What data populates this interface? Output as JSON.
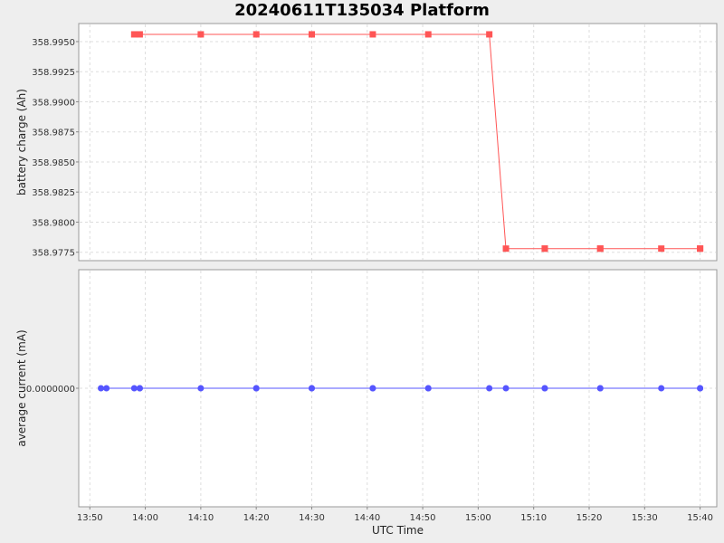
{
  "chart_data": {
    "title": "20240611T135034 Platform",
    "xlabel": "UTC Time",
    "x_ticks": [
      "13:50",
      "14:00",
      "14:10",
      "14:20",
      "14:30",
      "14:40",
      "14:50",
      "15:00",
      "15:10",
      "15:20",
      "15:30",
      "15:40"
    ],
    "x_range": [
      "13:48",
      "15:43"
    ],
    "grid": true,
    "panels": [
      {
        "type": "line",
        "ylabel": "battery charge (Ah)",
        "ylim": [
          358.9768,
          358.9965
        ],
        "y_ticks": [
          "358.9775",
          "358.9800",
          "358.9825",
          "358.9850",
          "358.9875",
          "358.9900",
          "358.9925",
          "358.9950"
        ],
        "color": "#ff5555",
        "marker": "square",
        "series": [
          {
            "x": [
              "13:58",
              "13:59",
              "14:10",
              "14:20",
              "14:30",
              "14:30",
              "14:41",
              "14:51",
              "15:02",
              "15:05",
              "15:12",
              "15:12",
              "15:22",
              "15:22",
              "15:33",
              "15:40",
              "15:40"
            ],
            "y": [
              358.9956,
              358.9956,
              358.9956,
              358.9956,
              358.9956,
              358.9956,
              358.9956,
              358.9956,
              358.9956,
              358.9778,
              358.9778,
              358.9778,
              358.9778,
              358.9778,
              358.9778,
              358.9778,
              358.9778
            ]
          }
        ]
      },
      {
        "type": "line",
        "ylabel": "average current (mA)",
        "y_ticks": [
          "0.0000000"
        ],
        "color": "#5555ff",
        "marker": "circle",
        "series": [
          {
            "x": [
              "13:52",
              "13:53",
              "13:58",
              "13:59",
              "13:59",
              "14:10",
              "14:20",
              "14:20",
              "14:30",
              "14:30",
              "14:41",
              "14:41",
              "14:51",
              "14:51",
              "15:02",
              "15:05",
              "15:12",
              "15:12",
              "15:22",
              "15:22",
              "15:33",
              "15:40",
              "15:40"
            ],
            "y": [
              0,
              0,
              0,
              0,
              0,
              0,
              0,
              0,
              0,
              0,
              0,
              0,
              0,
              0,
              0,
              0,
              0,
              0,
              0,
              0,
              0,
              0,
              0
            ]
          }
        ]
      }
    ]
  }
}
